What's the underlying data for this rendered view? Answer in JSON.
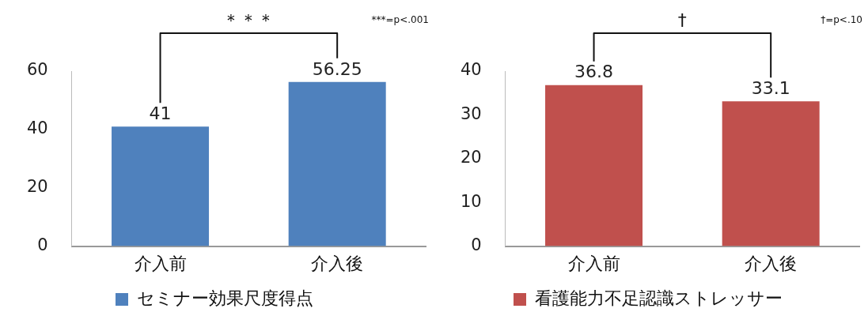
{
  "chart_data": [
    {
      "type": "bar",
      "categories": [
        "介入前",
        "介入後"
      ],
      "series": [
        {
          "name": "セミナー効果尺度得点",
          "color": "#4f81bd",
          "values": [
            41,
            56.25
          ]
        }
      ],
      "ylim": [
        0,
        60
      ],
      "yticks": [
        0,
        20,
        40,
        60
      ],
      "grid": false,
      "legend": "bottom",
      "data_labels": true,
      "annotations": [
        "＊＊＊",
        "***=p<.001"
      ]
    },
    {
      "type": "bar",
      "categories": [
        "介入前",
        "介入後"
      ],
      "series": [
        {
          "name": "看護能力不足認識ストレッサー",
          "color": "#c0504d",
          "values": [
            36.8,
            33.1
          ]
        }
      ],
      "ylim": [
        0,
        40
      ],
      "yticks": [
        0,
        10,
        20,
        30,
        40
      ],
      "grid": false,
      "legend": "bottom",
      "data_labels": true,
      "annotations": [
        "†",
        "†=p<.10"
      ]
    }
  ]
}
